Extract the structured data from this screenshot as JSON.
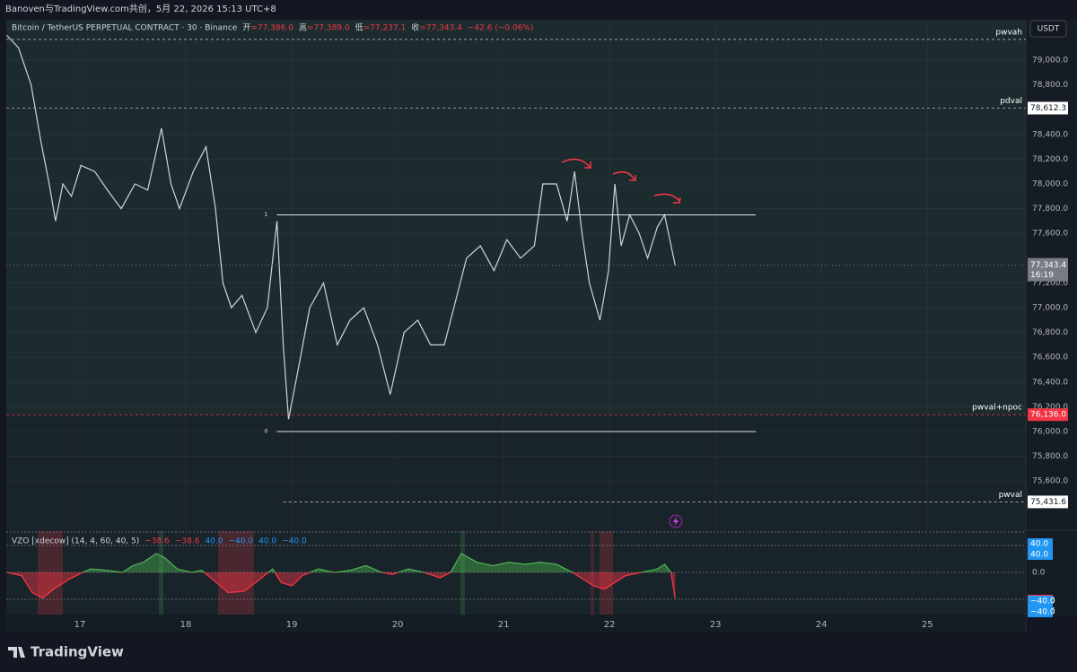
{
  "header": {
    "text": "Banoven与TradingView.com共创，5月 22, 2026 15:13 UTC+8"
  },
  "footer": {
    "logo": "TradingView"
  },
  "chart_data": [
    {
      "type": "line",
      "title": "Bitcoin / TetherUS PERPETUAL CONTRACT · 30 · Binance",
      "ohlc": [
        {
          "key": "开",
          "text": "=77,386.0"
        },
        {
          "key": "高",
          "text": "=77,389.0"
        },
        {
          "key": "低",
          "text": "=77,237.1"
        },
        {
          "key": "收",
          "text": "=77,343.4"
        },
        {
          "key": "change",
          "text": "−42.6 (−0.06%)"
        }
      ],
      "currency": "USDT",
      "color": "#d1d4dc",
      "x": [
        16.31,
        16.42,
        16.54,
        16.63,
        16.71,
        16.77,
        16.84,
        16.92,
        17.01,
        17.14,
        17.26,
        17.39,
        17.52,
        17.64,
        17.77,
        17.86,
        17.94,
        18.07,
        18.19,
        18.28,
        18.35,
        18.43,
        18.53,
        18.66,
        18.77,
        18.86,
        18.92,
        18.97,
        19.06,
        19.17,
        19.3,
        19.43,
        19.55,
        19.68,
        19.81,
        19.93,
        20.06,
        20.19,
        20.31,
        20.44,
        20.53,
        20.65,
        20.78,
        20.91,
        21.03,
        21.16,
        21.29,
        21.37,
        21.5,
        21.6,
        21.67,
        21.74,
        21.81,
        21.91,
        21.99,
        22.05,
        22.11,
        22.19,
        22.28,
        22.36,
        22.45,
        22.52,
        22.62
      ],
      "values": [
        79200,
        79100,
        78800,
        78350,
        78000,
        77700,
        78000,
        77900,
        78150,
        78100,
        77950,
        77800,
        78000,
        77950,
        78450,
        78000,
        77800,
        78100,
        78300,
        77800,
        77200,
        77000,
        77100,
        76800,
        77000,
        77700,
        76700,
        76100,
        76500,
        77000,
        77200,
        76700,
        76900,
        77000,
        76700,
        76300,
        76800,
        76900,
        76700,
        76700,
        77000,
        77400,
        77500,
        77300,
        77550,
        77400,
        77500,
        78000,
        78000,
        77700,
        78100,
        77600,
        77200,
        76900,
        77300,
        78000,
        77500,
        77750,
        77600,
        77400,
        77650,
        77750,
        77343.4
      ],
      "xlim": [
        16.305,
        25.93
      ],
      "ylim": [
        75210,
        79326
      ],
      "xticks": [
        17,
        18,
        19,
        20,
        21,
        22,
        23,
        24,
        25
      ],
      "yticks": [
        {
          "value": 79000,
          "label": "79,000.0"
        },
        {
          "value": 78800,
          "label": "78,800.0"
        },
        {
          "value": 78400,
          "label": "78,400.0"
        },
        {
          "value": 78200,
          "label": "78,200.0"
        },
        {
          "value": 78000,
          "label": "78,000.0"
        },
        {
          "value": 77800,
          "label": "77,800.0"
        },
        {
          "value": 77600,
          "label": "77,600.0"
        },
        {
          "value": 77200,
          "label": "77,200.0"
        },
        {
          "value": 77000,
          "label": "77,000.0"
        },
        {
          "value": 76800,
          "label": "76,800.0"
        },
        {
          "value": 76600,
          "label": "76,600.0"
        },
        {
          "value": 76400,
          "label": "76,400.0"
        },
        {
          "value": 76200,
          "label": "76,200.0"
        },
        {
          "value": 76000,
          "label": "76,000.0"
        },
        {
          "value": 75800,
          "label": "75,800.0"
        },
        {
          "value": 75600,
          "label": "75,600.0"
        }
      ],
      "grid": true,
      "levels": [
        {
          "name": "pwvah",
          "value": 79167,
          "color": "#b2b5be"
        },
        {
          "name": "pdval",
          "value": 78612.3,
          "label": "78,612.3",
          "color": "#b2b5be"
        },
        {
          "name": "pwval+npoc",
          "value": 76136.0,
          "label": "76,136.0",
          "color": "#f23645"
        },
        {
          "name": "pwval",
          "value": 75431.6,
          "label": "75,431.6",
          "color": "#b2b5be",
          "start": 18.92
        }
      ],
      "fib": {
        "start": 18.86,
        "end": 23.38,
        "levels": [
          {
            "value": 77750,
            "label": "1"
          },
          {
            "value": 76000,
            "label": "0"
          }
        ]
      },
      "last": {
        "value": 77343.4,
        "label": "77,343.4",
        "countdown": "16:19"
      }
    },
    {
      "type": "area",
      "title": "VZO [xdecow] (14, 4, 60, 40, 5)",
      "legend_values": [
        {
          "value": -38.6,
          "label": "−38.6",
          "color": "#f23645"
        },
        {
          "value": -38.6,
          "label": "−38.6",
          "color": "#f23645"
        },
        {
          "value": 40.0,
          "label": "40.0",
          "color": "#2196f3"
        },
        {
          "value": -40.0,
          "label": "−40.0",
          "color": "#2196f3"
        },
        {
          "value": 40.0,
          "label": "40.0",
          "color": "#2196f3"
        },
        {
          "value": -40.0,
          "label": "−40.0",
          "color": "#2196f3"
        }
      ],
      "up_color": "#4caf50",
      "down_color": "#f23645",
      "x": [
        16.31,
        16.45,
        16.55,
        16.65,
        16.75,
        16.9,
        17.0,
        17.1,
        17.25,
        17.4,
        17.5,
        17.6,
        17.72,
        17.8,
        17.92,
        18.05,
        18.15,
        18.25,
        18.4,
        18.55,
        18.7,
        18.82,
        18.9,
        19.0,
        19.1,
        19.25,
        19.4,
        19.55,
        19.7,
        19.85,
        19.95,
        20.1,
        20.25,
        20.4,
        20.5,
        20.6,
        20.75,
        20.9,
        21.05,
        21.2,
        21.35,
        21.5,
        21.65,
        21.75,
        21.85,
        21.95,
        22.05,
        22.15,
        22.3,
        22.45,
        22.52,
        22.58,
        22.62
      ],
      "values": [
        0,
        -5,
        -30,
        -38,
        -25,
        -10,
        -2,
        5,
        3,
        0,
        10,
        15,
        28,
        22,
        5,
        0,
        3,
        -10,
        -30,
        -28,
        -10,
        5,
        -15,
        -20,
        -5,
        5,
        0,
        3,
        10,
        0,
        -3,
        5,
        0,
        -8,
        0,
        28,
        15,
        10,
        15,
        12,
        15,
        12,
        0,
        -10,
        -20,
        -25,
        -15,
        -5,
        0,
        5,
        12,
        0,
        -38.6
      ],
      "xlim": [
        16.305,
        25.93
      ],
      "ylim": [
        -62.7,
        61.3
      ],
      "yticks": [
        {
          "value": 0,
          "label": "0.0"
        }
      ],
      "bands": [
        60,
        40,
        -40
      ]
    }
  ]
}
